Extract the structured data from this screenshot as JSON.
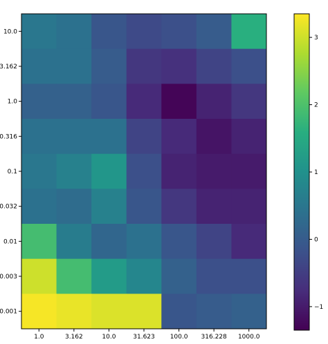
{
  "chart_data": {
    "type": "heatmap",
    "title": "",
    "xlabel": "",
    "ylabel": "",
    "x_categories": [
      "1.0",
      "3.162",
      "10.0",
      "31.623",
      "100.0",
      "316.228",
      "1000.0"
    ],
    "y_categories": [
      "10.0",
      "3.162",
      "1.0",
      "0.316",
      "0.1",
      "0.032",
      "0.01",
      "0.003",
      "0.001"
    ],
    "values": [
      [
        0.5,
        0.4,
        -0.1,
        -0.3,
        -0.2,
        0.0,
        1.6
      ],
      [
        0.4,
        0.4,
        0.0,
        -0.6,
        -0.7,
        -0.4,
        -0.2
      ],
      [
        0.1,
        0.1,
        -0.1,
        -0.8,
        -1.3,
        -0.9,
        -0.6
      ],
      [
        0.4,
        0.4,
        0.4,
        -0.4,
        -0.8,
        -1.1,
        -0.9
      ],
      [
        0.5,
        0.7,
        1.1,
        -0.2,
        -0.9,
        -1.0,
        -1.0
      ],
      [
        0.4,
        0.3,
        0.7,
        -0.1,
        -0.6,
        -0.9,
        -0.9
      ],
      [
        1.9,
        0.6,
        0.2,
        0.4,
        -0.1,
        -0.4,
        -0.8
      ],
      [
        3.0,
        1.9,
        1.2,
        0.8,
        0.1,
        -0.2,
        -0.2
      ],
      [
        3.3,
        3.2,
        3.1,
        3.1,
        -0.1,
        0.0,
        0.1
      ]
    ],
    "colormap": "viridis",
    "colorbar": {
      "range": [
        -1.35,
        3.35
      ],
      "ticks": [
        -1,
        0,
        1,
        2,
        3
      ]
    },
    "grid": false
  }
}
